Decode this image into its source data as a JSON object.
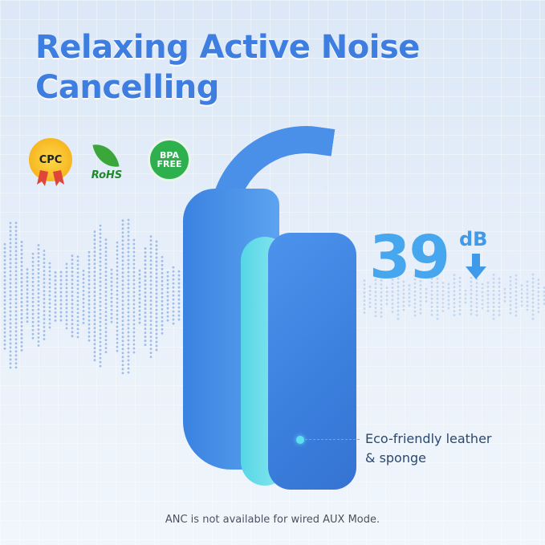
{
  "headline": {
    "line1": "Relaxing Active Noise",
    "line2": "Cancelling"
  },
  "certifications": [
    {
      "name": "cpc-badge",
      "label": "CPC"
    },
    {
      "name": "rohs-badge",
      "label": "RoHS"
    },
    {
      "name": "bpa-free-badge",
      "label_line1": "BPA",
      "label_line2": "FREE"
    }
  ],
  "noise_reduction": {
    "value": "39",
    "unit": "dB",
    "icon": "arrow-down-icon"
  },
  "feature": {
    "line1": "Eco-friendly leather",
    "line2": "& sponge"
  },
  "footnote": "ANC is not available for wired AUX Mode.",
  "colors": {
    "title": "#3d7ee0",
    "headphone": "#4a90e8",
    "cushion": "#56d6e6",
    "db": "#46a6ee"
  }
}
